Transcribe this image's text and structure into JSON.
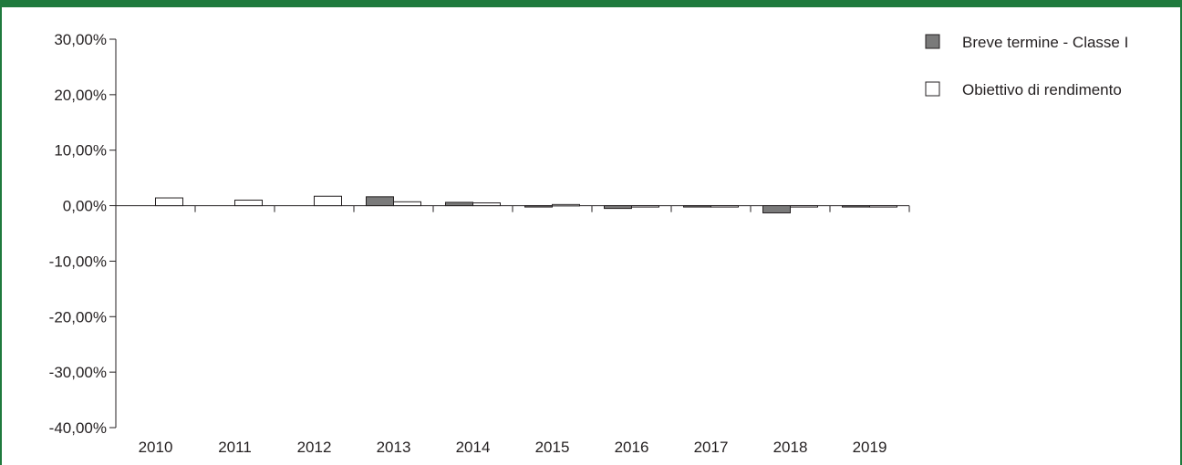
{
  "chart_data": {
    "type": "bar",
    "title": "",
    "xlabel": "",
    "ylabel": "",
    "ylim": [
      -40,
      30
    ],
    "y_ticks": [
      "30,00%",
      "20,00%",
      "10,00%",
      "0,00%",
      "-10,00%",
      "-20,00%",
      "-30,00%",
      "-40,00%"
    ],
    "categories": [
      "2010",
      "2011",
      "2012",
      "2013",
      "2014",
      "2015",
      "2016",
      "2017",
      "2018",
      "2019"
    ],
    "series": [
      {
        "name": "Breve termine - Classe I",
        "color": "#7a7a7a",
        "values": [
          null,
          null,
          null,
          1.6,
          0.6,
          -0.1,
          -0.5,
          -0.2,
          -1.3,
          -0.1
        ]
      },
      {
        "name": "Obiettivo di rendimento",
        "color": "#ffffff",
        "values": [
          1.4,
          1.0,
          1.7,
          0.7,
          0.5,
          0.2,
          -0.05,
          -0.2,
          -0.15,
          -0.1
        ]
      }
    ],
    "legend_position": "top-right",
    "grid": false
  },
  "colors": {
    "header": "#1f7a3d",
    "axis": "#231f20"
  }
}
